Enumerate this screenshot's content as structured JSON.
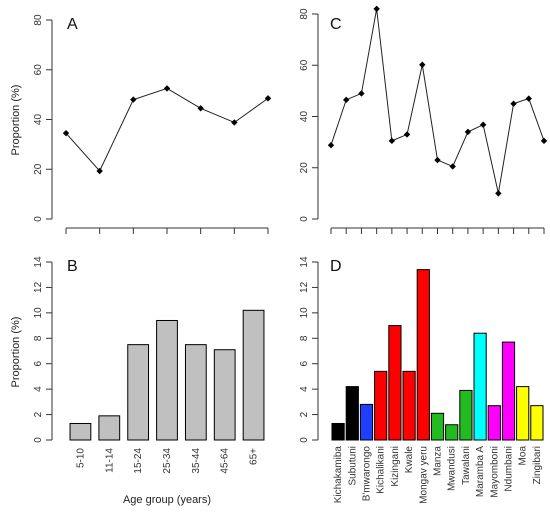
{
  "chart_data": [
    {
      "panel": "A",
      "type": "line",
      "ylabel": "Proportion (%)",
      "ylim": [
        0,
        80
      ],
      "yticks": [
        0,
        20,
        40,
        60,
        80
      ],
      "categories": [
        "5-10",
        "11-14",
        "15-24",
        "25-34",
        "35-44",
        "45-64",
        "65+"
      ],
      "values": [
        34.5,
        19.3,
        48,
        52.5,
        44.5,
        38.8,
        48.5
      ]
    },
    {
      "panel": "B",
      "type": "bar",
      "ylabel": "Proportion (%)",
      "xlabel": "Age group (years)",
      "ylim": [
        0,
        14
      ],
      "yticks": [
        0,
        2,
        4,
        6,
        8,
        10,
        12,
        14
      ],
      "categories": [
        "5-10",
        "11-14",
        "15-24",
        "25-34",
        "35-44",
        "45-64",
        "65+"
      ],
      "values": [
        1.3,
        1.9,
        7.5,
        9.4,
        7.5,
        7.1,
        10.2
      ],
      "bar_color": "#c0c0c0"
    },
    {
      "panel": "C",
      "type": "line",
      "ylim": [
        0,
        80
      ],
      "yticks": [
        0,
        20,
        40,
        60,
        80
      ],
      "categories": [
        "Kichakamiba",
        "Subutuni",
        "B'mwarongo",
        "Kichalikani",
        "Kizingani",
        "Kwale",
        "Mongav yeru",
        "Manza",
        "Mwandusi",
        "Tawalani",
        "Maramba A",
        "Mayomboni",
        "Ndumbani",
        "Moa",
        "Zingibari"
      ],
      "values": [
        28.8,
        46.5,
        49,
        82,
        30.5,
        33,
        60.2,
        23,
        20.5,
        34,
        36.8,
        10,
        45,
        47,
        30.5
      ]
    },
    {
      "panel": "D",
      "type": "bar",
      "ylim": [
        0,
        14
      ],
      "yticks": [
        0,
        2,
        4,
        6,
        8,
        10,
        12,
        14
      ],
      "categories": [
        "Kichakamiba",
        "Subutuni",
        "B'mwarongo",
        "Kichalikani",
        "Kizingani",
        "Kwale",
        "Mongav yeru",
        "Manza",
        "Mwandusi",
        "Tawalani",
        "Maramba A",
        "Mayomboni",
        "Ndumbani",
        "Moa",
        "Zingibari"
      ],
      "values": [
        1.3,
        4.2,
        2.8,
        5.4,
        9.0,
        5.4,
        13.4,
        2.1,
        1.2,
        3.9,
        8.4,
        2.7,
        7.7,
        4.2,
        2.7
      ],
      "colors": [
        "#000000",
        "#000000",
        "#1f3fff",
        "#ff0000",
        "#ff0000",
        "#ff0000",
        "#ff0000",
        "#22bb22",
        "#22bb22",
        "#22bb22",
        "#00ffff",
        "#ff00ff",
        "#ff00ff",
        "#ffff00",
        "#ffff00"
      ]
    }
  ]
}
